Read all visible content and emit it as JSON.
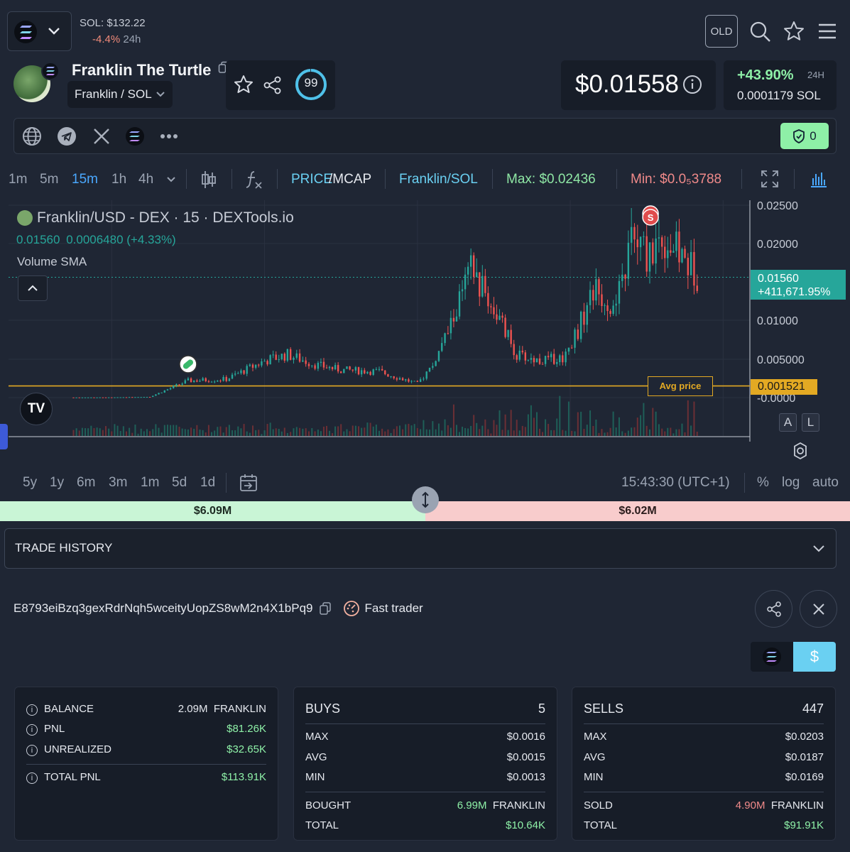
{
  "header": {
    "sol_price": "SOL: $132.22",
    "sol_change": "-4.4%",
    "sol_change_period": "24h",
    "old_label": "OLD"
  },
  "token": {
    "name": "Franklin The Turtle",
    "pair": "Franklin / SOL",
    "score": "99",
    "price": "$0.01558",
    "change_24h": "+43.90%",
    "change_period": "24H",
    "price_sol": "0.0001179 SOL",
    "audit_count": "0"
  },
  "toolbar": {
    "intervals": [
      "1m",
      "5m",
      "15m",
      "1h",
      "4h"
    ],
    "active_interval": "15m",
    "price_label": "PRICE",
    "mcap_label": "/MCAP",
    "pair_label": "Franklin/SOL",
    "max_label": "Max: $0.02436",
    "min_label": "Min: $0.0₅3788"
  },
  "chart_data": {
    "type": "candlestick",
    "title": "Franklin/USD - DEX · 15 · DEXTools.io",
    "ohlc_line": "0.01560",
    "ohlc_change": "0.0006480 (+4.33%)",
    "indicator": "Volume SMA",
    "x_ticks": [
      "2",
      "4",
      "6",
      "8",
      "10"
    ],
    "y_ticks": [
      "0.02500",
      "0.02000",
      "0.01000",
      "0.005000",
      "-0.0000"
    ],
    "current_price_label": "0.01560",
    "current_change_label": "+411,671.95%",
    "avg_price_label": "Avg price",
    "avg_price_value": "0.001521",
    "close_series": [
      {
        "x": 1.5,
        "y": 2e-05
      },
      {
        "x": 2.0,
        "y": 3e-05
      },
      {
        "x": 2.5,
        "y": 0.0001
      },
      {
        "x": 3.0,
        "y": 0.0022
      },
      {
        "x": 3.5,
        "y": 0.0024
      },
      {
        "x": 4.0,
        "y": 0.0048
      },
      {
        "x": 4.3,
        "y": 0.0056
      },
      {
        "x": 4.7,
        "y": 0.0042
      },
      {
        "x": 5.0,
        "y": 0.0036
      },
      {
        "x": 5.5,
        "y": 0.0034
      },
      {
        "x": 6.0,
        "y": 0.0018
      },
      {
        "x": 6.2,
        "y": 0.0042
      },
      {
        "x": 6.4,
        "y": 0.0085
      },
      {
        "x": 6.7,
        "y": 0.0165
      },
      {
        "x": 7.0,
        "y": 0.0115
      },
      {
        "x": 7.3,
        "y": 0.0055
      },
      {
        "x": 7.6,
        "y": 0.0048
      },
      {
        "x": 7.9,
        "y": 0.0052
      },
      {
        "x": 8.1,
        "y": 0.0088
      },
      {
        "x": 8.3,
        "y": 0.014
      },
      {
        "x": 8.6,
        "y": 0.0115
      },
      {
        "x": 8.8,
        "y": 0.0205
      },
      {
        "x": 9.0,
        "y": 0.0185
      },
      {
        "x": 9.2,
        "y": 0.021
      },
      {
        "x": 9.5,
        "y": 0.0178
      },
      {
        "x": 9.7,
        "y": 0.0156
      }
    ],
    "markers": [
      {
        "x": 3.0,
        "label": "B"
      },
      {
        "x": 9.05,
        "label": "S"
      }
    ],
    "flags": {
      "A": "A",
      "L": "L"
    }
  },
  "timebar": {
    "ranges": [
      "5y",
      "1y",
      "6m",
      "3m",
      "1m",
      "5d",
      "1d"
    ],
    "clock": "15:43:30 (UTC+1)",
    "percent": "%",
    "log": "log",
    "auto": "auto"
  },
  "volume_split": {
    "buy": "$6.09M",
    "sell": "$6.02M"
  },
  "trade_history": {
    "label": "TRADE HISTORY"
  },
  "wallet": {
    "address": "E8793eiBzq3gexRdrNqh5wceityUopZS8wM2n4X1bPq9",
    "tag": "Fast trader",
    "currency_usd": "$"
  },
  "balance_card": {
    "balance_label": "BALANCE",
    "balance_value": "2.09M",
    "balance_unit": "FRANKLIN",
    "pnl_label": "PNL",
    "pnl_value": "$81.26K",
    "unrealized_label": "UNREALIZED",
    "unrealized_value": "$32.65K",
    "total_label": "TOTAL PNL",
    "total_value": "$113.91K"
  },
  "buys_card": {
    "title": "BUYS",
    "count": "5",
    "max_label": "MAX",
    "max_value": "$0.0016",
    "avg_label": "AVG",
    "avg_value": "$0.0015",
    "min_label": "MIN",
    "min_value": "$0.0013",
    "qty_label": "BOUGHT",
    "qty_value": "6.99M",
    "qty_unit": "FRANKLIN",
    "total_label": "TOTAL",
    "total_value": "$10.64K"
  },
  "sells_card": {
    "title": "SELLS",
    "count": "447",
    "max_label": "MAX",
    "max_value": "$0.0203",
    "avg_label": "AVG",
    "avg_value": "$0.0187",
    "min_label": "MIN",
    "min_value": "$0.0169",
    "qty_label": "SOLD",
    "qty_value": "4.90M",
    "qty_unit": "FRANKLIN",
    "total_label": "TOTAL",
    "total_value": "$91.91K"
  },
  "colors": {
    "bg": "#1f2634",
    "up": "#26a69a",
    "down": "#ef5350",
    "accent_cyan": "#6ad0f2",
    "avg_line": "#e3a923"
  }
}
